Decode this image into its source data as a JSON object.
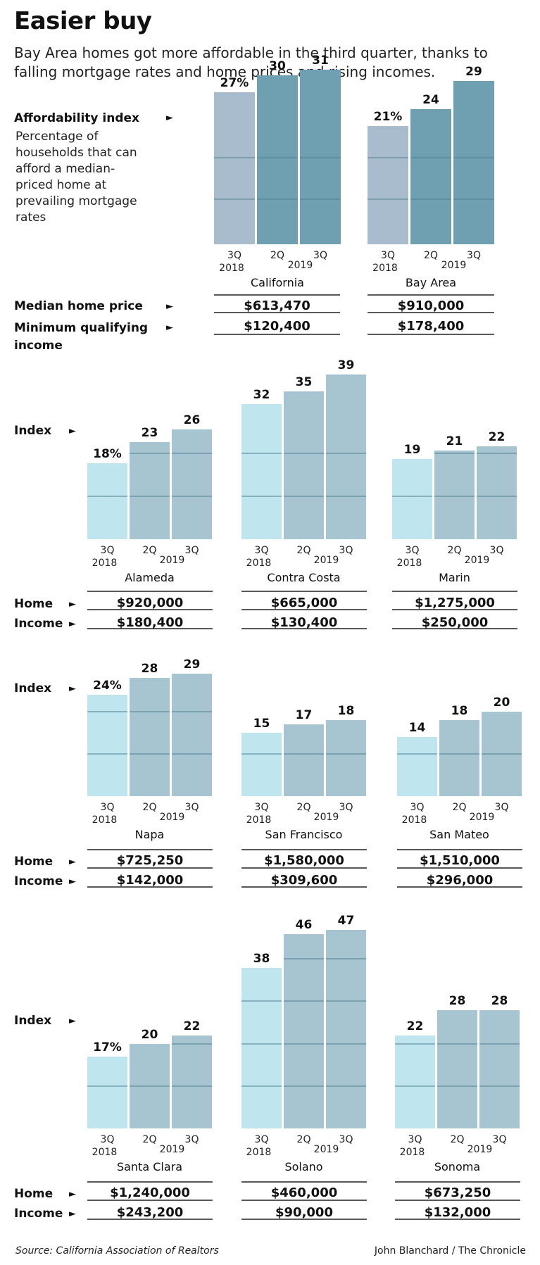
{
  "title": "Easier buy",
  "subtitle": "Bay Area homes got more affordable in the third quarter, thanks to falling mortgage rates and home prices and rising incomes.",
  "labels": {
    "affordability_index": "Affordability index",
    "affordability_desc": "Percentage of households that can afford a median-priced home at prevailing mortgage rates",
    "median_home_price": "Median home price",
    "min_qualifying_income": "Minimum qualifying income",
    "index": "Index",
    "home": "Home",
    "income": "Income",
    "arrow": "►"
  },
  "periods": [
    {
      "q": "3Q",
      "y": "2018"
    },
    {
      "q": "2Q",
      "y": ""
    },
    {
      "q": "3Q",
      "y": ""
    }
  ],
  "year_2019": "2019",
  "colors": {
    "state_2018": "#a9bccd",
    "state_2019": "#6fa0b1",
    "county_2018": "#bfe6ef",
    "county_2019": "#a6c5d0",
    "gridline": "#4f7f91"
  },
  "footer": {
    "source": "Source: California Association of Realtors",
    "credit": "John Blanchard / The Chronicle"
  },
  "chart_data": [
    {
      "type": "bar",
      "group": "top",
      "region": "California",
      "categories": [
        "3Q 2018",
        "2Q 2019",
        "3Q 2019"
      ],
      "values": [
        27,
        30,
        31
      ],
      "value_labels": [
        "27%",
        "30",
        "31"
      ],
      "home": "$613,470",
      "income": "$120,400"
    },
    {
      "type": "bar",
      "group": "top",
      "region": "Bay Area",
      "categories": [
        "3Q 2018",
        "2Q 2019",
        "3Q 2019"
      ],
      "values": [
        21,
        24,
        29
      ],
      "value_labels": [
        "21%",
        "24",
        "29"
      ],
      "home": "$910,000",
      "income": "$178,400"
    },
    {
      "type": "bar",
      "group": "row1",
      "region": "Alameda",
      "categories": [
        "3Q 2018",
        "2Q 2019",
        "3Q 2019"
      ],
      "values": [
        18,
        23,
        26
      ],
      "value_labels": [
        "18%",
        "23",
        "26"
      ],
      "home": "$920,000",
      "income": "$180,400"
    },
    {
      "type": "bar",
      "group": "row1",
      "region": "Contra Costa",
      "categories": [
        "3Q 2018",
        "2Q 2019",
        "3Q 2019"
      ],
      "values": [
        32,
        35,
        39
      ],
      "value_labels": [
        "32",
        "35",
        "39"
      ],
      "home": "$665,000",
      "income": "$130,400"
    },
    {
      "type": "bar",
      "group": "row1",
      "region": "Marin",
      "categories": [
        "3Q 2018",
        "2Q 2019",
        "3Q 2019"
      ],
      "values": [
        19,
        21,
        22
      ],
      "value_labels": [
        "19",
        "21",
        "22"
      ],
      "home": "$1,275,000",
      "income": "$250,000"
    },
    {
      "type": "bar",
      "group": "row2",
      "region": "Napa",
      "categories": [
        "3Q 2018",
        "2Q 2019",
        "3Q 2019"
      ],
      "values": [
        24,
        28,
        29
      ],
      "value_labels": [
        "24%",
        "28",
        "29"
      ],
      "home": "$725,250",
      "income": "$142,000"
    },
    {
      "type": "bar",
      "group": "row2",
      "region": "San Francisco",
      "categories": [
        "3Q 2018",
        "2Q 2019",
        "3Q 2019"
      ],
      "values": [
        15,
        17,
        18
      ],
      "value_labels": [
        "15",
        "17",
        "18"
      ],
      "home": "$1,580,000",
      "income": "$309,600"
    },
    {
      "type": "bar",
      "group": "row2",
      "region": "San Mateo",
      "categories": [
        "3Q 2018",
        "2Q 2019",
        "3Q 2019"
      ],
      "values": [
        14,
        18,
        20
      ],
      "value_labels": [
        "14",
        "18",
        "20"
      ],
      "home": "$1,510,000",
      "income": "$296,000"
    },
    {
      "type": "bar",
      "group": "row3",
      "region": "Santa Clara",
      "categories": [
        "3Q 2018",
        "2Q 2019",
        "3Q 2019"
      ],
      "values": [
        17,
        20,
        22
      ],
      "value_labels": [
        "17%",
        "20",
        "22"
      ],
      "home": "$1,240,000",
      "income": "$243,200"
    },
    {
      "type": "bar",
      "group": "row3",
      "region": "Solano",
      "categories": [
        "3Q 2018",
        "2Q 2019",
        "3Q 2019"
      ],
      "values": [
        38,
        46,
        47
      ],
      "value_labels": [
        "38",
        "46",
        "47"
      ],
      "home": "$460,000",
      "income": "$90,000"
    },
    {
      "type": "bar",
      "group": "row3",
      "region": "Sonoma",
      "categories": [
        "3Q 2018",
        "2Q 2019",
        "3Q 2019"
      ],
      "values": [
        22,
        28,
        28
      ],
      "value_labels": [
        "22",
        "28",
        "28"
      ],
      "home": "$673,250",
      "income": "$132,000"
    }
  ]
}
